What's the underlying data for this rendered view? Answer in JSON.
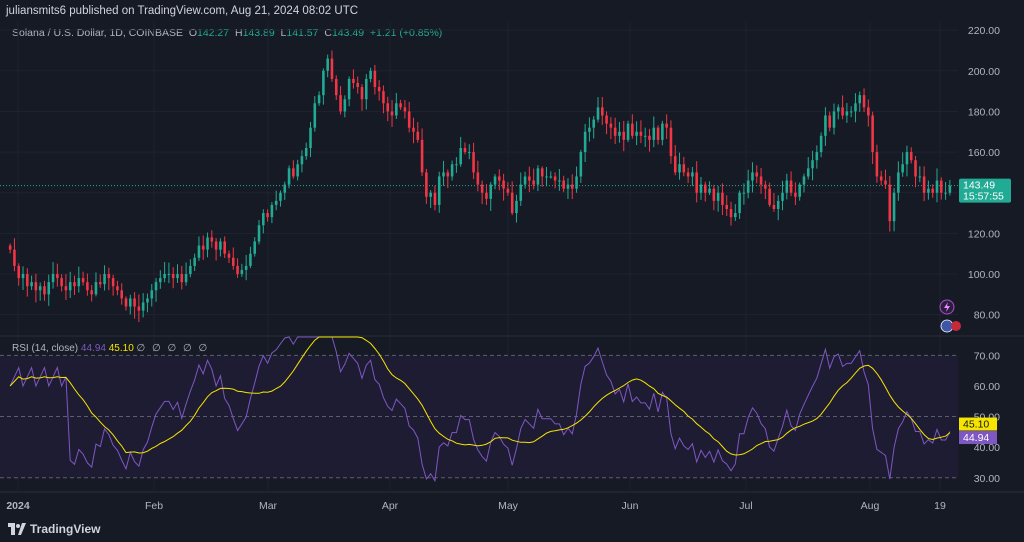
{
  "header": {
    "publisher": "juliansmits6 published on TradingView.com, Aug 21, 2024 08:02 UTC"
  },
  "symbol": {
    "name": "Solana / U.S. Dollar, 1D, COINBASE",
    "o_label": "O",
    "o_value": "142.27",
    "h_label": "H",
    "h_value": "143.89",
    "l_label": "L",
    "l_value": "141.57",
    "c_label": "C",
    "c_value": "143.49",
    "change": "+1.21 (+0.85%)"
  },
  "rsi_legend": {
    "name": "RSI (14, close)",
    "rsi_value": "44.94",
    "ma_value": "45.10",
    "extra": "∅ ∅ ∅ ∅ ∅"
  },
  "footer": {
    "brand": "TradingView"
  },
  "colors": {
    "up": "#22ab94",
    "down": "#f23645",
    "rsi": "#7e57c2",
    "rsi_ma": "#f5e400",
    "bg": "#161a25"
  },
  "chart_data": [
    {
      "type": "candlestick",
      "title": "Solana / U.S. Dollar, 1D, COINBASE",
      "ylim": [
        70,
        224
      ],
      "yticks": [
        80,
        100,
        120,
        140,
        160,
        180,
        200,
        220
      ],
      "ytick_labels": [
        "80.00",
        "100.00",
        "120.00",
        "140.00",
        "160.00",
        "180.00",
        "200.00",
        "220.00"
      ],
      "last_price": 143.49,
      "last_price_label": "143.49",
      "countdown": "15:57:55",
      "close_path_note": "approximate daily closes (one per trading day)",
      "x_labels": [
        "2024",
        "Feb",
        "Mar",
        "Apr",
        "May",
        "Jun",
        "Jul",
        "Aug",
        "19"
      ],
      "closes": [
        112,
        104,
        98,
        100,
        94,
        96,
        92,
        94,
        90,
        96,
        100,
        98,
        94,
        92,
        96,
        94,
        98,
        96,
        92,
        90,
        96,
        95,
        100,
        98,
        94,
        92,
        88,
        84,
        88,
        84,
        82,
        86,
        88,
        92,
        96,
        98,
        100,
        100,
        98,
        100,
        96,
        100,
        104,
        108,
        114,
        112,
        118,
        116,
        112,
        116,
        110,
        108,
        104,
        100,
        102,
        104,
        110,
        116,
        124,
        130,
        128,
        134,
        136,
        140,
        144,
        152,
        148,
        154,
        158,
        162,
        172,
        184,
        188,
        200,
        206,
        196,
        188,
        180,
        186,
        196,
        194,
        192,
        186,
        196,
        200,
        192,
        190,
        184,
        180,
        178,
        184,
        182,
        180,
        172,
        170,
        166,
        150,
        138,
        140,
        134,
        148,
        150,
        148,
        154,
        154,
        162,
        160,
        160,
        150,
        144,
        140,
        137,
        144,
        148,
        146,
        142,
        140,
        130,
        136,
        144,
        148,
        146,
        144,
        152,
        148,
        148,
        148,
        146,
        146,
        142,
        144,
        142,
        148,
        160,
        170,
        172,
        176,
        182,
        178,
        174,
        172,
        168,
        170,
        166,
        174,
        168,
        170,
        168,
        168,
        166,
        172,
        166,
        174,
        172,
        158,
        150,
        154,
        150,
        148,
        150,
        140,
        144,
        140,
        142,
        136,
        140,
        134,
        132,
        128,
        130,
        140,
        140,
        146,
        150,
        148,
        144,
        142,
        134,
        132,
        136,
        140,
        146,
        140,
        138,
        144,
        148,
        152,
        156,
        160,
        168,
        178,
        172,
        180,
        182,
        178,
        180,
        180,
        184,
        188,
        182,
        178,
        160,
        148,
        146,
        144,
        126,
        140,
        150,
        154,
        160,
        156,
        148,
        148,
        140,
        142,
        140,
        146,
        140,
        140,
        143.49
      ]
    },
    {
      "type": "line",
      "title": "RSI (14, close)",
      "ylim": [
        26,
        76
      ],
      "yticks": [
        30,
        40,
        50,
        60,
        70
      ],
      "ytick_labels": [
        "30.00",
        "40.00",
        "50.00",
        "60.00",
        "70.00"
      ],
      "band": [
        30,
        70
      ],
      "midline": 50,
      "series": [
        {
          "name": "RSI",
          "last": 44.94,
          "last_label": "44.94"
        },
        {
          "name": "MA",
          "last": 45.1,
          "last_label": "45.10"
        }
      ]
    }
  ]
}
